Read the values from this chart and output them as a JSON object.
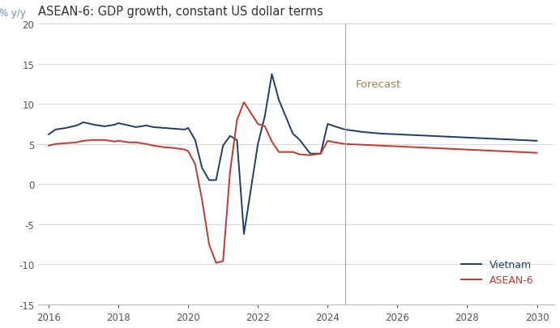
{
  "title": "ASEAN-6: GDP growth, constant US dollar terms",
  "ylabel": "% y/y",
  "forecast_label": "Forecast",
  "forecast_x": 2024.5,
  "xlim": [
    2015.7,
    2030.5
  ],
  "ylim": [
    -15,
    20
  ],
  "yticks": [
    -15,
    -10,
    -5,
    0,
    5,
    10,
    15,
    20
  ],
  "xticks": [
    2016,
    2018,
    2020,
    2022,
    2024,
    2026,
    2028,
    2030
  ],
  "vietnam_color": "#1f3d6b",
  "asean_color": "#c0392b",
  "forecast_line_color": "#aaaaaa",
  "title_color": "#444444",
  "ylabel_color": "#6b8ab5",
  "forecast_label_color": "#a08050",
  "legend_label_vietnam": "Vietnam",
  "legend_label_asean": "ASEAN-6",
  "vietnam_x": [
    2016.0,
    2016.2,
    2016.5,
    2016.8,
    2017.0,
    2017.3,
    2017.6,
    2017.9,
    2018.0,
    2018.3,
    2018.5,
    2018.8,
    2019.0,
    2019.3,
    2019.6,
    2019.9,
    2020.0,
    2020.2,
    2020.4,
    2020.6,
    2020.8,
    2021.0,
    2021.2,
    2021.4,
    2021.6,
    2022.0,
    2022.2,
    2022.4,
    2022.6,
    2023.0,
    2023.2,
    2023.5,
    2023.8,
    2024.0,
    2024.2,
    2024.5,
    2025.0,
    2025.5,
    2026.0,
    2026.5,
    2027.0,
    2027.5,
    2028.0,
    2028.5,
    2029.0,
    2029.5,
    2030.0
  ],
  "vietnam_y": [
    6.2,
    6.8,
    7.0,
    7.3,
    7.7,
    7.4,
    7.2,
    7.4,
    7.6,
    7.3,
    7.1,
    7.3,
    7.1,
    7.0,
    6.9,
    6.8,
    7.0,
    5.5,
    2.0,
    0.5,
    0.5,
    4.8,
    6.0,
    5.5,
    -6.2,
    5.0,
    8.5,
    13.7,
    10.5,
    6.3,
    5.5,
    3.8,
    3.8,
    7.5,
    7.2,
    6.8,
    6.5,
    6.3,
    6.2,
    6.1,
    6.0,
    5.9,
    5.8,
    5.7,
    5.6,
    5.5,
    5.4
  ],
  "asean_x": [
    2016.0,
    2016.2,
    2016.5,
    2016.8,
    2017.0,
    2017.3,
    2017.6,
    2017.9,
    2018.0,
    2018.3,
    2018.5,
    2018.8,
    2019.0,
    2019.3,
    2019.6,
    2019.9,
    2020.0,
    2020.2,
    2020.4,
    2020.6,
    2020.8,
    2021.0,
    2021.2,
    2021.4,
    2021.6,
    2022.0,
    2022.2,
    2022.4,
    2022.6,
    2023.0,
    2023.2,
    2023.5,
    2023.8,
    2024.0,
    2024.2,
    2024.5,
    2025.0,
    2025.5,
    2026.0,
    2026.5,
    2027.0,
    2027.5,
    2028.0,
    2028.5,
    2029.0,
    2029.5,
    2030.0
  ],
  "asean_y": [
    4.8,
    5.0,
    5.1,
    5.2,
    5.4,
    5.5,
    5.5,
    5.3,
    5.4,
    5.2,
    5.2,
    5.0,
    4.8,
    4.6,
    4.5,
    4.3,
    4.1,
    2.5,
    -2.0,
    -7.5,
    -9.8,
    -9.6,
    1.5,
    8.0,
    10.2,
    7.5,
    7.2,
    5.3,
    4.0,
    4.0,
    3.7,
    3.6,
    3.8,
    5.4,
    5.2,
    5.0,
    4.9,
    4.8,
    4.7,
    4.6,
    4.5,
    4.4,
    4.3,
    4.2,
    4.1,
    4.0,
    3.9
  ]
}
